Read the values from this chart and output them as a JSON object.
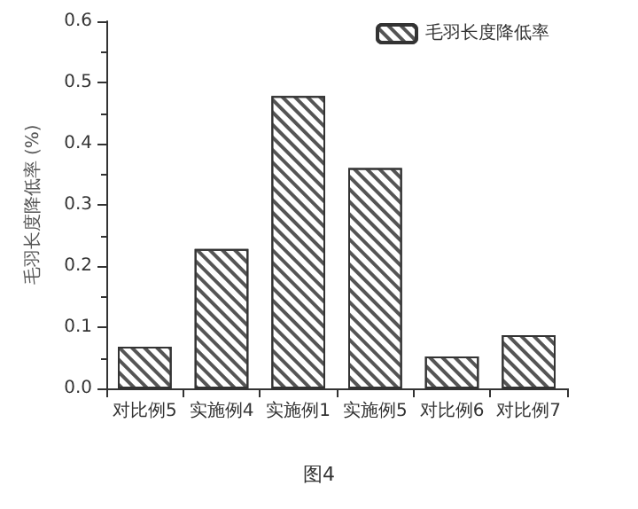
{
  "chart_data": {
    "type": "bar",
    "ylabel": "毛羽长度降低率 (%)",
    "categories": [
      "对比例5",
      "实施例4",
      "实施例1",
      "实施例5",
      "对比例6",
      "对比例7"
    ],
    "series": [
      {
        "name": "毛羽长度降低率",
        "color": "#ffffff",
        "values": [
          0.068,
          0.228,
          0.478,
          0.36,
          0.052,
          0.087
        ]
      }
    ],
    "ylim": [
      0,
      0.6
    ],
    "yticks": [
      {
        "value": 0,
        "label": "0.0"
      },
      0.1,
      0.2,
      0.3,
      0.4,
      0.5,
      0.6
    ],
    "legend": "top right",
    "grid": false,
    "annotations": [
      "图4"
    ]
  }
}
